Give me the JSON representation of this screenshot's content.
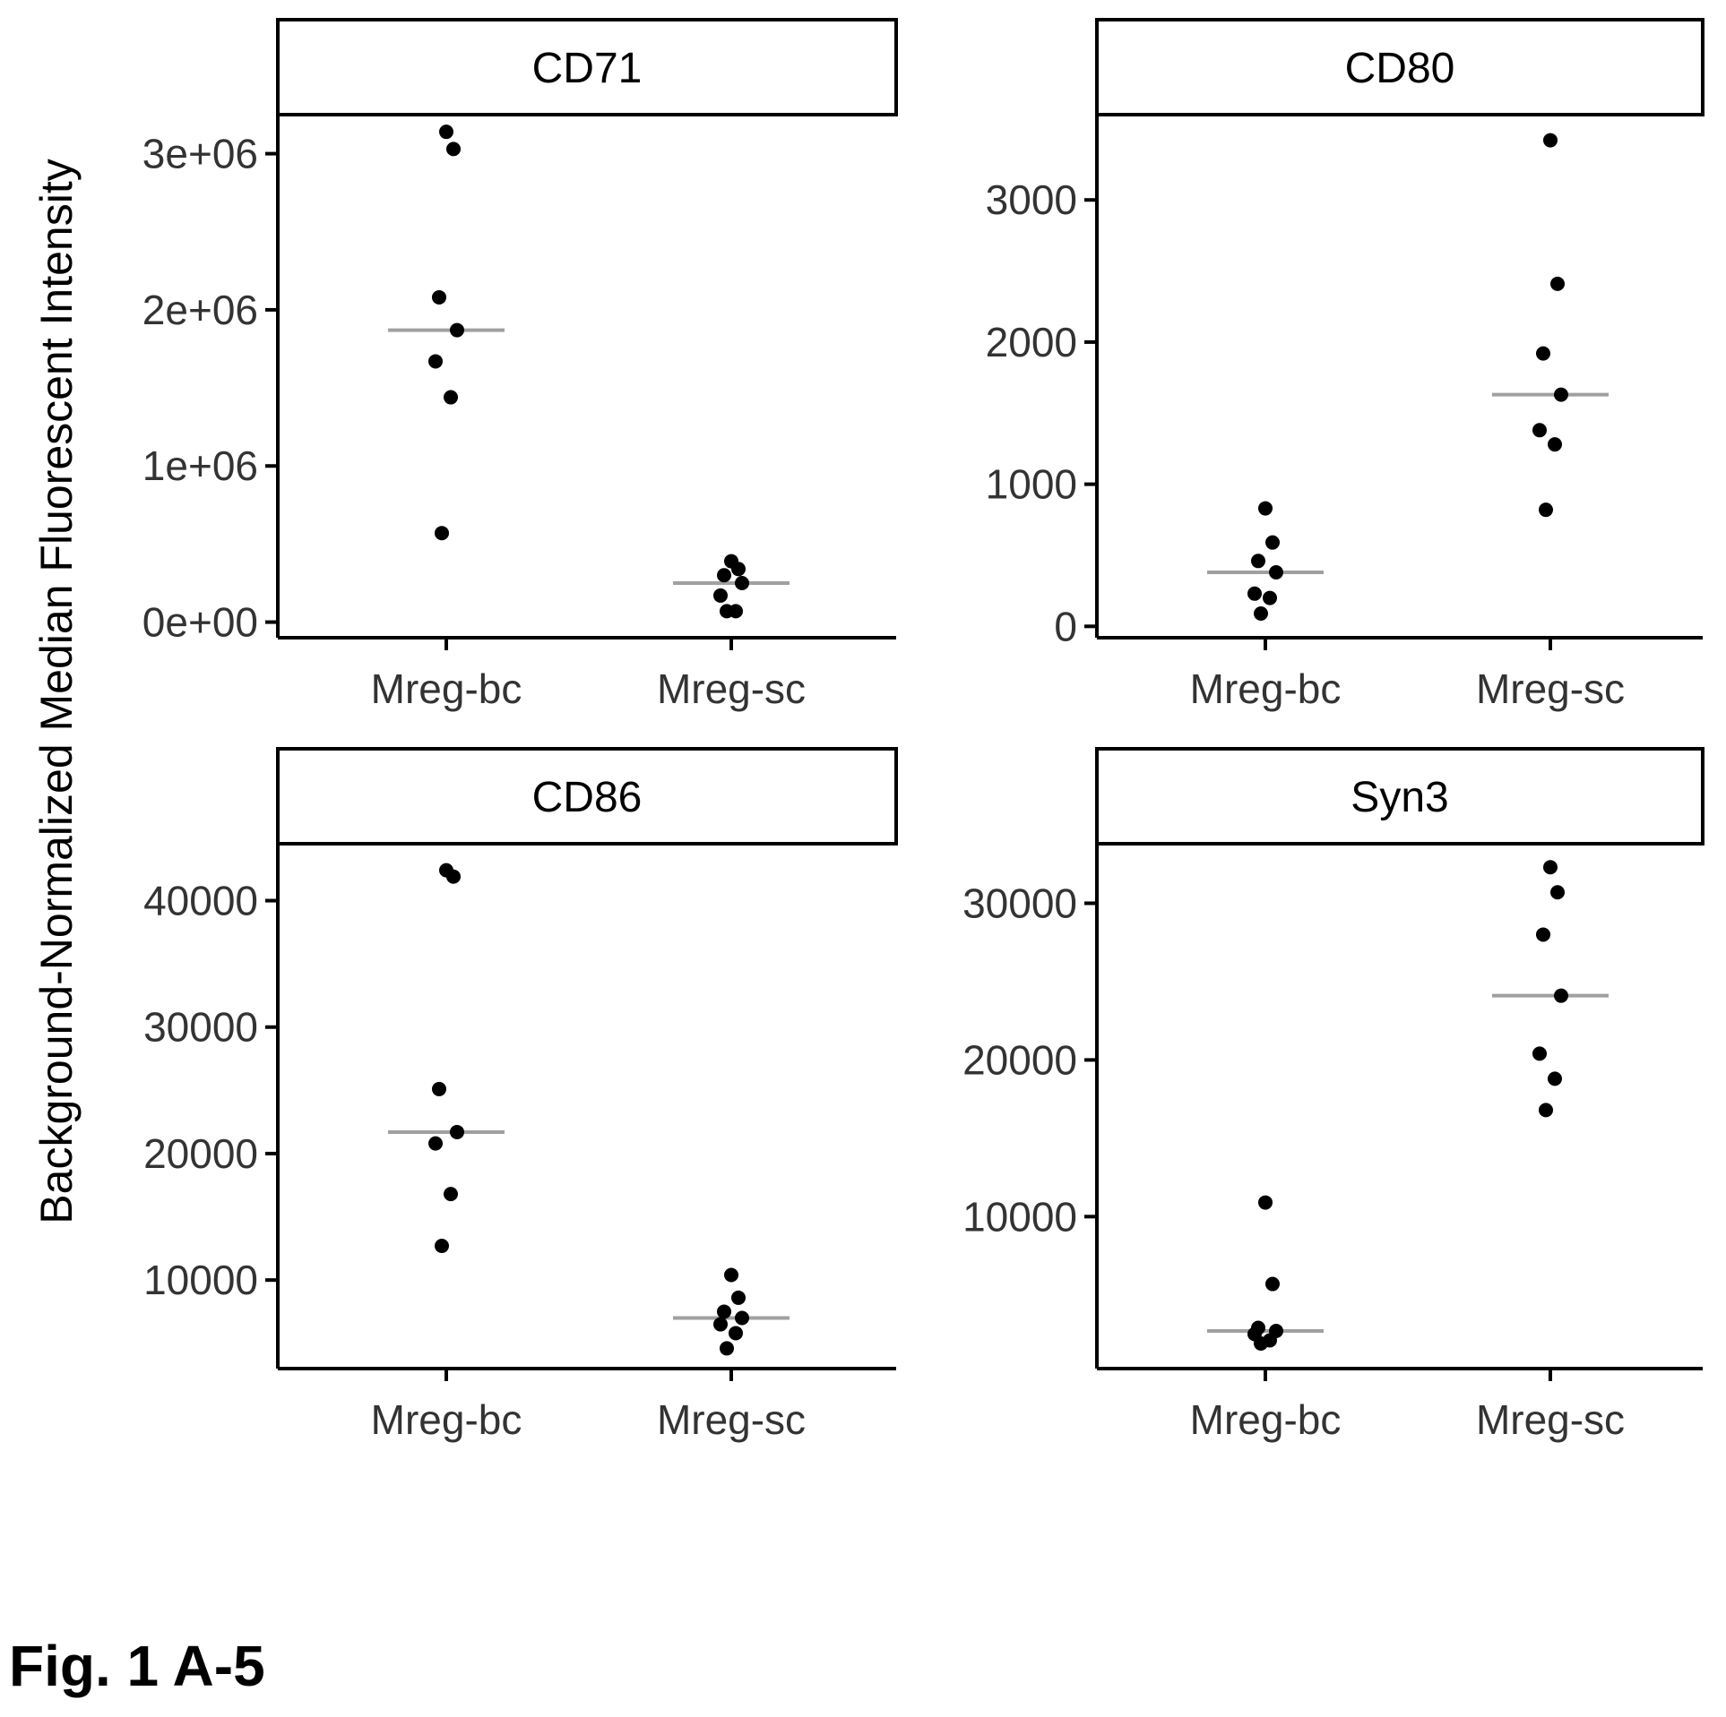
{
  "figure_label": "Fig. 1 A-5",
  "y_axis_label": "Background-Normalized Median Fluorescent Intensity",
  "colors": {
    "points": "#000000",
    "median_line": "#a0a0a0",
    "axis": "#000000",
    "strip_fill": "#ffffff"
  },
  "chart_data": [
    {
      "type": "scatter",
      "title": "CD71",
      "categories": [
        "Mreg-bc",
        "Mreg-sc"
      ],
      "ylim": [
        -100000,
        3250000
      ],
      "yticks": [
        0,
        1000000,
        2000000,
        3000000
      ],
      "ytick_labels": [
        "0e+00",
        "1e+06",
        "2e+06",
        "3e+06"
      ],
      "series": [
        {
          "category": "Mreg-bc",
          "values": [
            3140000,
            3030000,
            2080000,
            1870000,
            1670000,
            1440000,
            570000
          ],
          "median": 1870000
        },
        {
          "category": "Mreg-sc",
          "values": [
            390000,
            340000,
            300000,
            250000,
            170000,
            70000,
            70000
          ],
          "median": 250000
        }
      ]
    },
    {
      "type": "scatter",
      "title": "CD80",
      "categories": [
        "Mreg-bc",
        "Mreg-sc"
      ],
      "ylim": [
        -80,
        3600
      ],
      "yticks": [
        0,
        1000,
        2000,
        3000
      ],
      "ytick_labels": [
        "0",
        "1000",
        "2000",
        "3000"
      ],
      "series": [
        {
          "category": "Mreg-bc",
          "values": [
            830,
            590,
            460,
            380,
            230,
            200,
            90
          ],
          "median": 380
        },
        {
          "category": "Mreg-sc",
          "values": [
            3420,
            2410,
            1920,
            1630,
            1380,
            1280,
            820
          ],
          "median": 1630
        }
      ]
    },
    {
      "type": "scatter",
      "title": "CD86",
      "categories": [
        "Mreg-bc",
        "Mreg-sc"
      ],
      "ylim": [
        3000,
        44500
      ],
      "yticks": [
        10000,
        20000,
        30000,
        40000
      ],
      "ytick_labels": [
        "10000",
        "20000",
        "30000",
        "40000"
      ],
      "series": [
        {
          "category": "Mreg-bc",
          "values": [
            42400,
            41900,
            25100,
            21700,
            20800,
            16800,
            12700
          ],
          "median": 21700
        },
        {
          "category": "Mreg-sc",
          "values": [
            10400,
            8600,
            7500,
            7000,
            6500,
            5800,
            4600
          ],
          "median": 7000
        }
      ]
    },
    {
      "type": "scatter",
      "title": "Syn3",
      "categories": [
        "Mreg-bc",
        "Mreg-sc"
      ],
      "ylim": [
        300,
        33800
      ],
      "yticks": [
        10000,
        20000,
        30000
      ],
      "ytick_labels": [
        "10000",
        "20000",
        "30000"
      ],
      "series": [
        {
          "category": "Mreg-bc",
          "values": [
            10900,
            5700,
            2900,
            2700,
            2500,
            2100,
            1900
          ],
          "median": 2700
        },
        {
          "category": "Mreg-sc",
          "values": [
            32300,
            30700,
            28000,
            24100,
            20400,
            18800,
            16800
          ],
          "median": 24100
        }
      ]
    }
  ]
}
